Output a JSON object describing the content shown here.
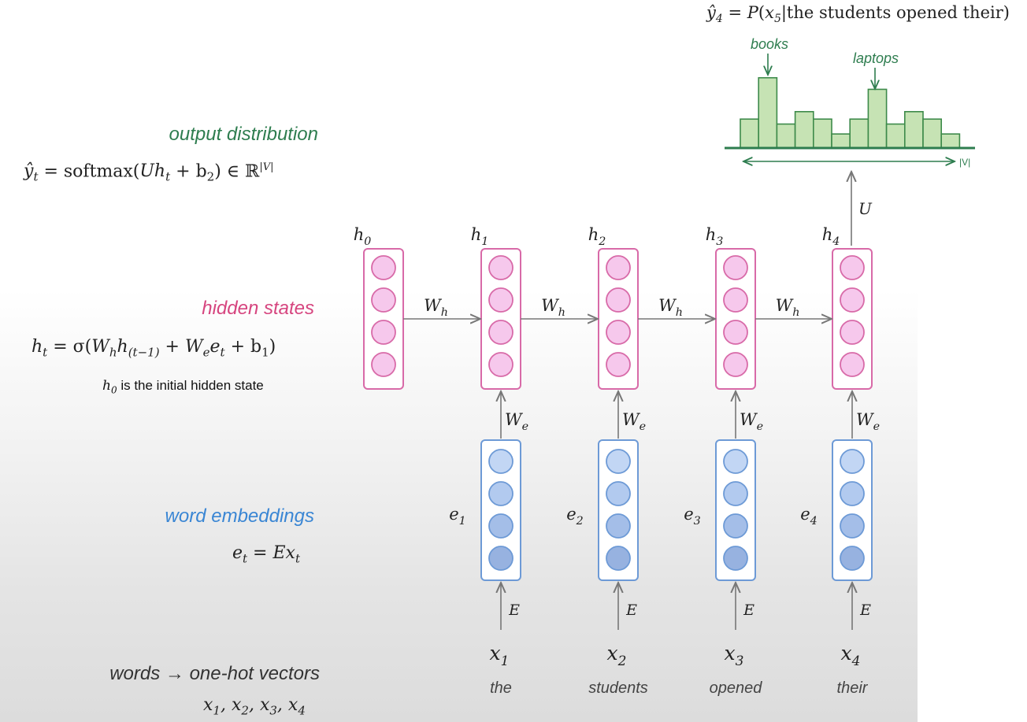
{
  "legend": {
    "output": {
      "title": "output distribution",
      "equation": "ŷ_t = softmax(Uh_t + b_2) ∈ ℝ^|V|"
    },
    "hidden": {
      "title": "hidden states",
      "equation": "h_t = σ(W_h h_(t−1) + W_e e_t + b_1)",
      "note": "h_0 is the initial hidden state"
    },
    "embeddings": {
      "title": "word embeddings",
      "equation": "e_t = Ex_t"
    },
    "words": {
      "title": "words → one-hot vectors",
      "equation": "x_1, x_2, x_3, x_4"
    }
  },
  "top_equation": "ŷ_4 = P(x_5 | the students opened their)",
  "histogram": {
    "annotations": [
      "books",
      "laptops"
    ],
    "vocab_label": "|V|",
    "relative_heights": [
      0.35,
      0.85,
      0.29,
      0.44,
      0.35,
      0.17,
      0.35,
      0.71,
      0.29,
      0.44,
      0.35,
      0.17
    ]
  },
  "network": {
    "hidden_labels": [
      "h_0",
      "h_1",
      "h_2",
      "h_3",
      "h_4"
    ],
    "embedding_labels": [
      "e_1",
      "e_2",
      "e_3",
      "e_4"
    ],
    "input_labels": [
      "x_1",
      "x_2",
      "x_3",
      "x_4"
    ],
    "words": [
      "the",
      "students",
      "opened",
      "their"
    ],
    "recurrent_weight": "W_h",
    "embed_weight": "W_e",
    "embedding_matrix": "E",
    "output_weight": "U"
  },
  "colors": {
    "output_green": "#2e7d4f",
    "hidden_pink": "#d6457f",
    "embed_blue": "#3a86d4",
    "hist_fill": "#c6e3b4",
    "hist_stroke": "#3d8a4a",
    "hidden_fill": "#f6c8ec",
    "hidden_stroke": "#d86aa8",
    "embed_fill": "#b4cdf0",
    "embed_stroke": "#6d9ad6"
  }
}
